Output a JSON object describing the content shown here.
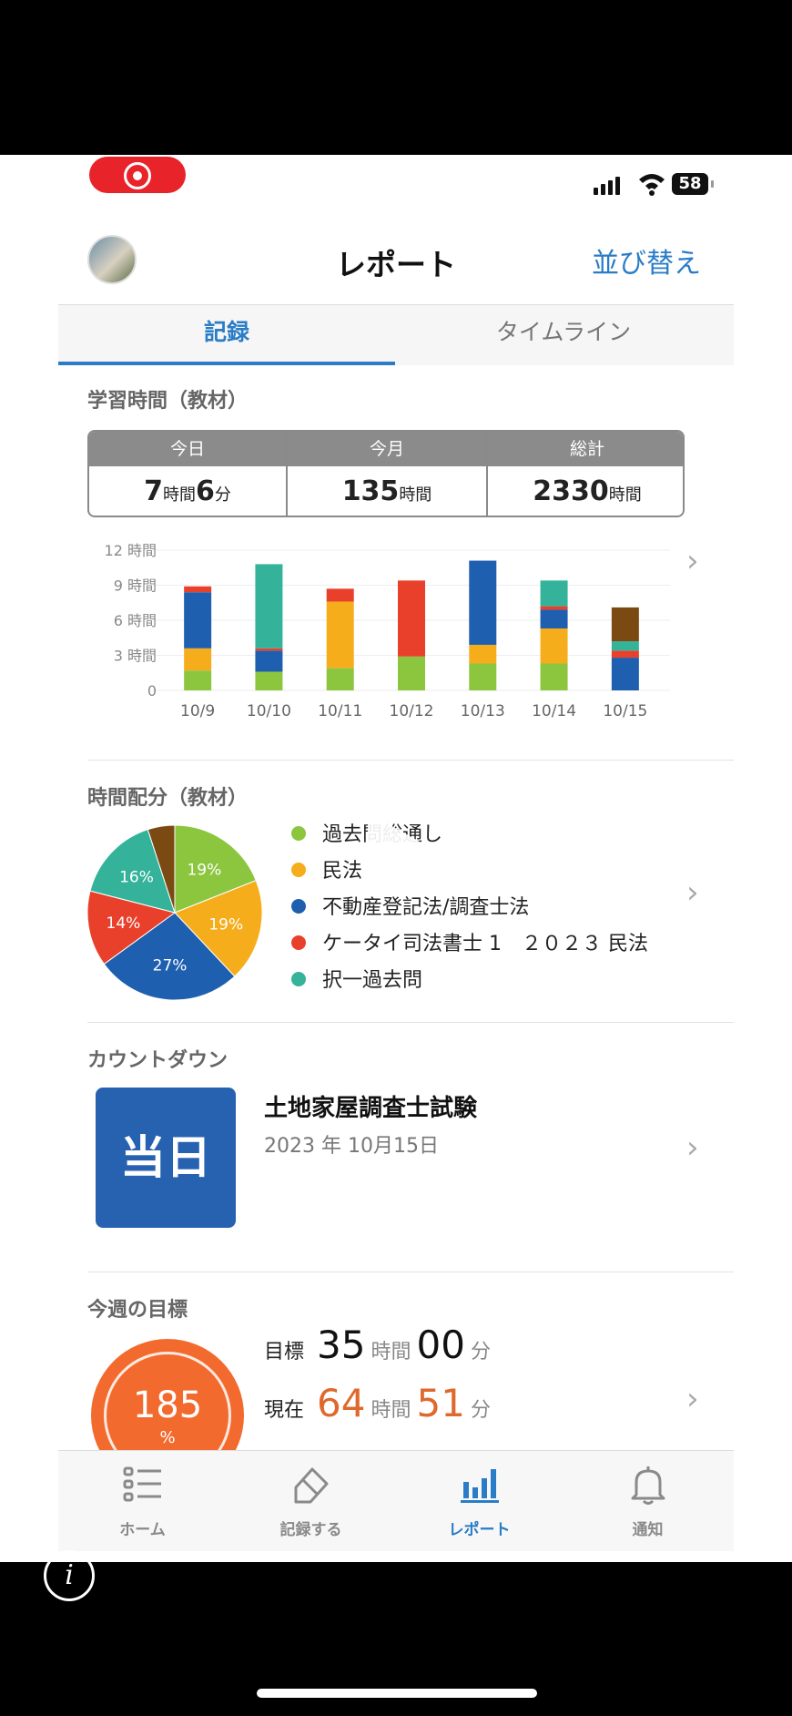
{
  "status_bar": {
    "battery": "58"
  },
  "header": {
    "title": "レポート",
    "sort_label": "並び替え"
  },
  "tabs": {
    "record": "記録",
    "timeline": "タイムライン"
  },
  "study_time": {
    "title": "学習時間（教材）",
    "today": {
      "label": "今日",
      "hours": "7",
      "hours_unit": "時間",
      "minutes": "6",
      "minutes_unit": "分"
    },
    "month": {
      "label": "今月",
      "hours": "135",
      "hours_unit": "時間"
    },
    "total": {
      "label": "総計",
      "hours": "2330",
      "hours_unit": "時間"
    }
  },
  "chart_data": [
    {
      "type": "bar",
      "stacked": true,
      "categories": [
        "10/9",
        "10/10",
        "10/11",
        "10/12",
        "10/13",
        "10/14",
        "10/15"
      ],
      "y_ticks": [
        "12 時間",
        "9 時間",
        "6 時間",
        "3 時間",
        "0"
      ],
      "ylim": [
        0,
        12
      ],
      "series": [
        {
          "name": "過去問総通し",
          "color": "#8cc63f",
          "values": [
            1.7,
            1.6,
            1.9,
            2.9,
            2.3,
            2.3,
            0
          ]
        },
        {
          "name": "民法",
          "color": "#f5ad1c",
          "values": [
            1.9,
            0,
            5.7,
            0,
            1.6,
            3.0,
            0
          ]
        },
        {
          "name": "不動産登記法/調査士法",
          "color": "#1f5fb0",
          "values": [
            4.8,
            1.8,
            0,
            0,
            7.2,
            1.6,
            2.8
          ]
        },
        {
          "name": "ケータイ司法書士 1　２０２３ 民法",
          "color": "#e8402a",
          "values": [
            0.5,
            0.2,
            1.1,
            6.5,
            0,
            0.3,
            0.6
          ]
        },
        {
          "name": "択一過去問",
          "color": "#34b39a",
          "values": [
            0,
            7.2,
            0,
            0,
            0,
            2.2,
            0.8
          ]
        },
        {
          "name": "",
          "color": "#7a4a12",
          "values": [
            0,
            0,
            0,
            0,
            0,
            0,
            2.9
          ]
        }
      ]
    },
    {
      "type": "pie",
      "title": "時間配分（教材）",
      "series": [
        {
          "name": "過去問総通し",
          "color": "#8cc63f",
          "value": 19,
          "label": "19%"
        },
        {
          "name": "民法",
          "color": "#f5ad1c",
          "value": 19,
          "label": "19%"
        },
        {
          "name": "不動産登記法/調査士法",
          "color": "#1f5fb0",
          "value": 27,
          "label": "27%"
        },
        {
          "name": "ケータイ司法書士 1　２０２３ 民法",
          "color": "#e8402a",
          "value": 14,
          "label": "14%"
        },
        {
          "name": "択一過去問",
          "color": "#34b39a",
          "value": 16,
          "label": "16%"
        },
        {
          "name": "",
          "color": "#7a4a12",
          "value": 5,
          "label": ""
        }
      ]
    }
  ],
  "allocation": {
    "title": "時間配分（教材）",
    "legend": [
      "過去問総通し",
      "民法",
      "不動産登記法/調査士法",
      "ケータイ司法書士 1　２０２３ 民法",
      "択一過去問"
    ],
    "legend_colors": [
      "#8cc63f",
      "#f5ad1c",
      "#1f5fb0",
      "#e8402a",
      "#34b39a"
    ]
  },
  "countdown": {
    "title": "カウントダウン",
    "badge": "当日",
    "exam_name": "土地家屋調査士試験",
    "exam_date": "2023 年 10月15日"
  },
  "weekly_goal": {
    "title": "今週の目標",
    "percent": "185",
    "percent_sign": "%",
    "target": {
      "label": "目標",
      "hours": "35",
      "hours_unit": "時間",
      "minutes": "00",
      "minutes_unit": "分"
    },
    "current": {
      "label": "現在",
      "hours": "64",
      "hours_unit": "時間",
      "minutes": "51",
      "minutes_unit": "分"
    }
  },
  "tab_bar": {
    "home": "ホーム",
    "record": "記録する",
    "report": "レポート",
    "notify": "通知"
  },
  "icons": [
    "record-icon",
    "signal-icon",
    "wifi-icon",
    "battery-icon",
    "chevron-right-icon",
    "play-icon",
    "list-icon",
    "pencil-icon",
    "bar-chart-icon",
    "bell-icon",
    "info-icon"
  ],
  "accent_color": "#2a7cc7"
}
